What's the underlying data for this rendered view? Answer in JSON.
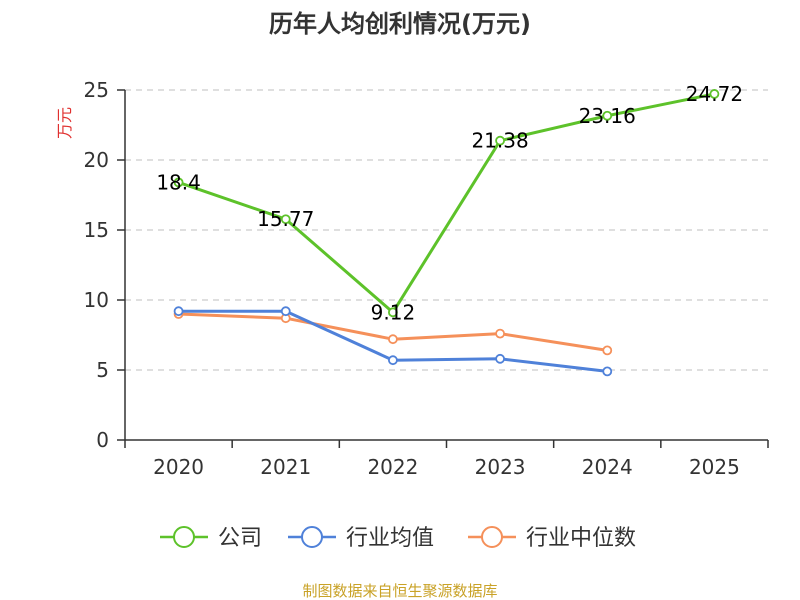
{
  "chart_data": {
    "type": "line",
    "title": "历年人均创利情况(万元)",
    "ylabel": "万元",
    "ylim": [
      0,
      25
    ],
    "yticks": [
      0,
      5,
      10,
      15,
      20,
      25
    ],
    "categories": [
      "2020",
      "2021",
      "2022",
      "2023",
      "2024",
      "2025"
    ],
    "grid": true,
    "legend_position": "bottom",
    "series": [
      {
        "name": "公司",
        "color": "#5dc22a",
        "values": [
          18.4,
          15.77,
          9.12,
          21.38,
          23.16,
          24.72
        ],
        "labels": [
          "18.4",
          "15.77",
          "9.12",
          "21.38",
          "23.16",
          "24.72"
        ]
      },
      {
        "name": "行业均值",
        "color": "#4f81d9",
        "values": [
          9.2,
          9.2,
          5.7,
          5.8,
          4.9,
          null
        ]
      },
      {
        "name": "行业中位数",
        "color": "#f5905a",
        "values": [
          9.0,
          8.7,
          7.2,
          7.6,
          6.4,
          null
        ]
      }
    ]
  },
  "source_text": "制图数据来自恒生聚源数据库",
  "colors": {
    "ylabel": "#e0302f",
    "source": "#c9a227",
    "axis": "#333333",
    "grid": "#cccccc"
  }
}
